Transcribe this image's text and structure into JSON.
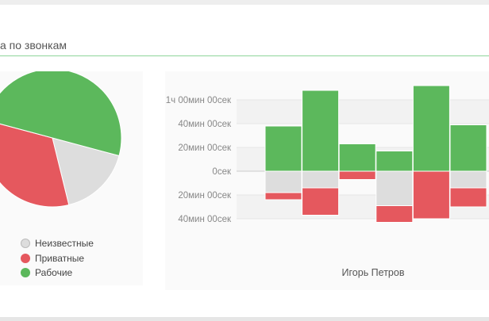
{
  "panel": {
    "title": "а по звонкам"
  },
  "legend": {
    "items": [
      {
        "label": "Неизвестные",
        "color": "#dddddd",
        "icon": "unknown-dot-icon"
      },
      {
        "label": "Приватные",
        "color": "#e5585e",
        "icon": "private-dot-icon"
      },
      {
        "label": "Рабочие",
        "color": "#5cb85c",
        "icon": "work-dot-icon"
      }
    ]
  },
  "chart_data": [
    {
      "type": "pie",
      "series": [
        {
          "name": "Неизвестные",
          "value": 17,
          "color": "#dddddd"
        },
        {
          "name": "Приватные",
          "value": 33,
          "color": "#e5585e"
        },
        {
          "name": "Рабочие",
          "value": 50,
          "color": "#5cb85c"
        }
      ]
    },
    {
      "type": "bar",
      "xlabel": "Игорь Петров",
      "y_tick_labels": [
        "1ч 00мин 00сек",
        "40мин 00сек",
        "20мин 00сек",
        "0сек",
        "20мин 00сек",
        "40мин 00сек"
      ],
      "y_tick_values": [
        60,
        40,
        20,
        0,
        -20,
        -40
      ],
      "ylim": [
        -40,
        70
      ],
      "series": [
        {
          "name": "Рабочие",
          "color": "#5cb85c",
          "values": [
            38,
            68,
            23,
            17,
            72,
            39
          ]
        },
        {
          "name": "Неизвестные",
          "color": "#dddddd",
          "values": [
            -18,
            -14,
            0,
            -29,
            0,
            -14
          ]
        },
        {
          "name": "Приватные",
          "color": "#e5585e",
          "values": [
            -6,
            -23,
            -7,
            -14,
            -40,
            -16
          ]
        }
      ]
    }
  ]
}
